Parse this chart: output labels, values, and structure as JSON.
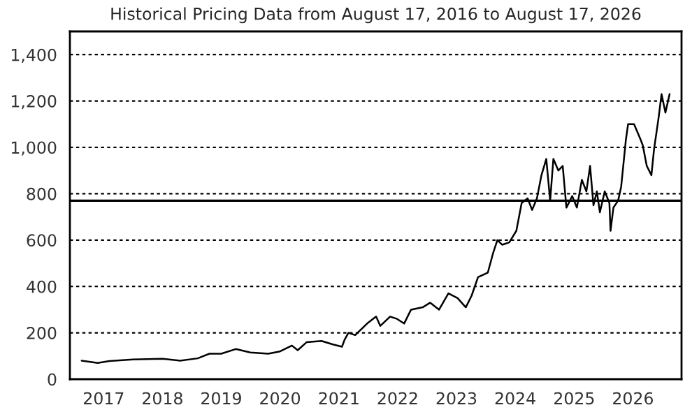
{
  "chart_data": {
    "type": "line",
    "title": "Historical Pricing Data from August 17, 2016 to August 17, 2026",
    "x": [
      "2016-08-17",
      "2016-11-25",
      "2017-02-05",
      "2017-07-01",
      "2018-01-01",
      "2018-04-20",
      "2018-08-08",
      "2018-10-20",
      "2019-01-01",
      "2019-04-01",
      "2019-07-01",
      "2019-10-20",
      "2020-01-01",
      "2020-03-15",
      "2020-04-20",
      "2020-06-15",
      "2020-09-15",
      "2020-11-25",
      "2021-01-20",
      "2021-02-05",
      "2021-03-01",
      "2021-04-12",
      "2021-06-25",
      "2021-08-20",
      "2021-09-15",
      "2021-11-15",
      "2021-12-28",
      "2022-02-10",
      "2022-03-25",
      "2022-06-05",
      "2022-07-22",
      "2022-09-15",
      "2022-11-12",
      "2023-01-08",
      "2023-02-28",
      "2023-04-05",
      "2023-05-15",
      "2023-07-15",
      "2023-08-15",
      "2023-09-12",
      "2023-10-12",
      "2023-11-25",
      "2024-01-08",
      "2024-02-10",
      "2024-03-18",
      "2024-04-15",
      "2024-05-15",
      "2024-06-12",
      "2024-07-12",
      "2024-08-05",
      "2024-08-25",
      "2024-09-25",
      "2024-10-22",
      "2024-11-14",
      "2024-12-20",
      "2025-01-18",
      "2025-02-18",
      "2025-03-18",
      "2025-04-10",
      "2025-05-01",
      "2025-05-22",
      "2025-06-10",
      "2025-07-10",
      "2025-08-08",
      "2025-08-15",
      "2025-09-02",
      "2025-10-01",
      "2025-10-20",
      "2025-11-18",
      "2025-12-02",
      "2026-01-08",
      "2026-02-14",
      "2026-03-03",
      "2026-03-28",
      "2026-04-26",
      "2026-05-12",
      "2026-06-10",
      "2026-06-28",
      "2026-07-22",
      "2026-08-17"
    ],
    "series": [
      {
        "color": "#000000",
        "values": [
          80,
          70,
          78,
          85,
          88,
          80,
          90,
          110,
          110,
          130,
          115,
          110,
          120,
          145,
          125,
          160,
          165,
          150,
          140,
          170,
          200,
          190,
          240,
          270,
          230,
          270,
          260,
          240,
          300,
          310,
          330,
          300,
          370,
          350,
          310,
          360,
          440,
          460,
          540,
          600,
          580,
          590,
          640,
          760,
          780,
          730,
          780,
          880,
          950,
          770,
          950,
          900,
          920,
          740,
          790,
          740,
          860,
          810,
          920,
          750,
          810,
          720,
          810,
          760,
          640,
          740,
          770,
          830,
          1030,
          1100,
          1100,
          1040,
          1010,
          920,
          880,
          990,
          1130,
          1230,
          1150,
          1230
        ]
      }
    ],
    "xlim": [
      "2016-06-05",
      "2026-10-30"
    ],
    "xticks": [
      {
        "value": "2017-01-01",
        "label": "2017"
      },
      {
        "value": "2018-01-01",
        "label": "2018"
      },
      {
        "value": "2019-01-01",
        "label": "2019"
      },
      {
        "value": "2020-01-01",
        "label": "2020"
      },
      {
        "value": "2021-01-01",
        "label": "2021"
      },
      {
        "value": "2022-01-01",
        "label": "2022"
      },
      {
        "value": "2023-01-01",
        "label": "2023"
      },
      {
        "value": "2024-01-01",
        "label": "2024"
      },
      {
        "value": "2025-01-01",
        "label": "2025"
      },
      {
        "value": "2026-01-01",
        "label": "2026"
      }
    ],
    "ylim": [
      0,
      1500
    ],
    "yticks": [
      0,
      200,
      400,
      600,
      800,
      {
        "value": 1000,
        "label": "1,000"
      },
      {
        "value": 1200,
        "label": "1,200"
      },
      {
        "value": 1400,
        "label": "1,400"
      }
    ],
    "ref_lines": [
      {
        "axis": "y",
        "value": 770,
        "color": "#000000",
        "line_style": "solid"
      }
    ],
    "grid": "y",
    "line_style": "solid",
    "marker": "none"
  }
}
